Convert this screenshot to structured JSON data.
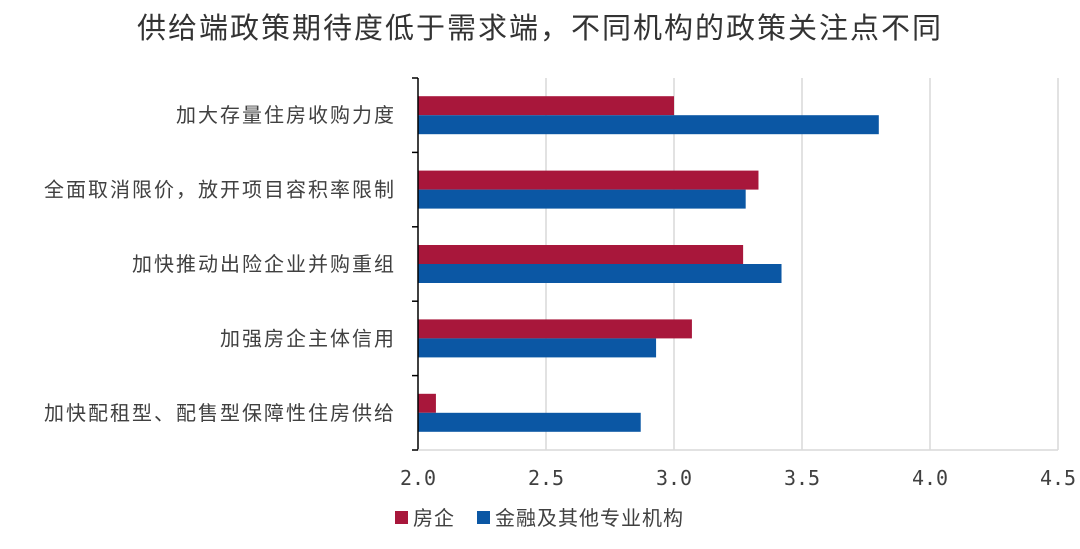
{
  "chart_data": {
    "type": "bar",
    "orientation": "horizontal",
    "title": "供给端政策期待度低于需求端，不同机构的政策关注点不同",
    "categories": [
      "加大存量住房收购力度",
      "全面取消限价，放开项目容积率限制",
      "加快推动出险企业并购重组",
      "加强房企主体信用",
      "加快配租型、配售型保障性住房供给"
    ],
    "series": [
      {
        "name": "房企",
        "color": "#a8173b",
        "values": [
          3.0,
          3.33,
          3.27,
          3.07,
          2.07
        ]
      },
      {
        "name": "金融及其他专业机构",
        "color": "#0b57a4",
        "values": [
          3.8,
          3.28,
          3.42,
          2.93,
          2.87
        ]
      }
    ],
    "xlim": [
      2.0,
      4.5
    ],
    "xticks": [
      "2.0",
      "2.5",
      "3.0",
      "3.5",
      "4.0",
      "4.5"
    ],
    "grid": true,
    "legend_position": "bottom"
  }
}
